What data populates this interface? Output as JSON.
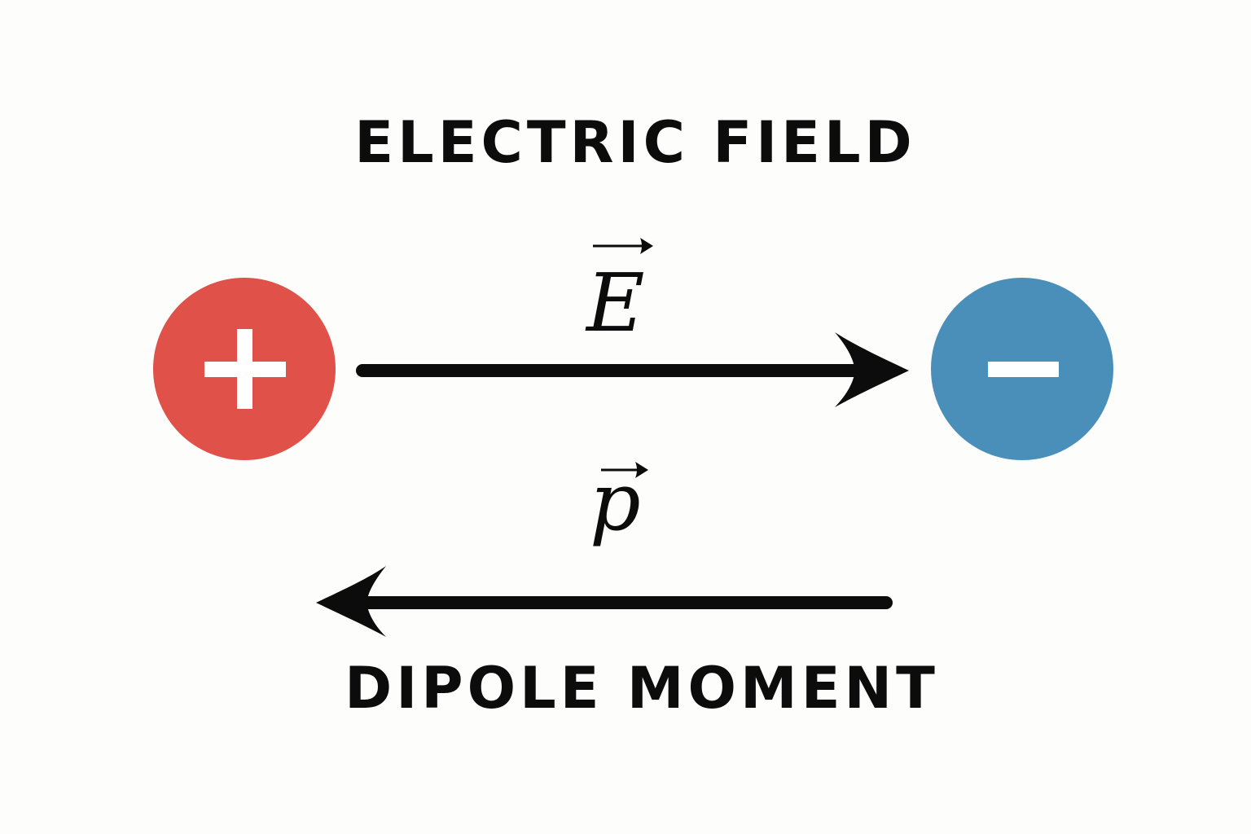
{
  "titles": {
    "top": "ELECTRIC FIELD",
    "bottom": "DIPOLE MOMENT"
  },
  "charges": {
    "positive": {
      "sign": "+",
      "color": "#e0514a"
    },
    "negative": {
      "sign": "−",
      "color": "#4a8fba"
    }
  },
  "vectors": {
    "field": {
      "symbol": "E",
      "direction": "right"
    },
    "dipole": {
      "symbol": "p",
      "direction": "left"
    }
  },
  "colors": {
    "arrow": "#0c0c0c",
    "background": "#fdfdfb",
    "sign": "#ffffff"
  }
}
